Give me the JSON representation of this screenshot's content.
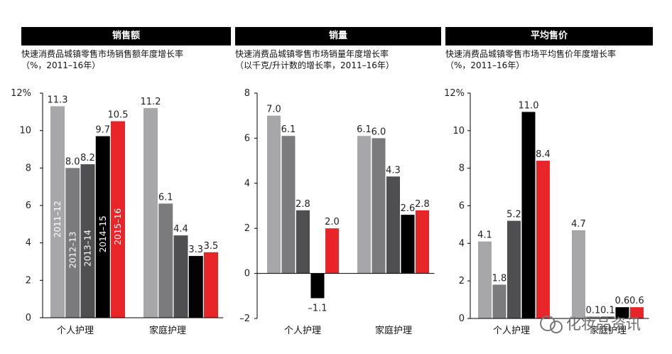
{
  "panels": [
    {
      "title": "销售额",
      "subtitle_lines": [
        "快速消费品城镇零售市场销售额年度增长率",
        "（%，2011–16年）"
      ]
    },
    {
      "title": "销量",
      "subtitle_lines": [
        "快速消费品城镇零售市场销量年度增长率",
        "（以千克/升计数的增长率，2011–16年）"
      ]
    },
    {
      "title": "平均售价",
      "subtitle_lines": [
        "快速消费品城镇零售市场平均售价年度增长率",
        "（%，2011–16年）"
      ]
    }
  ],
  "watermark": "化妆品资讯",
  "colors": {
    "s2011_12": "#a7a7a9",
    "s2012_13": "#7b7b7d",
    "s2013_14": "#4f4f51",
    "s2014_15": "#000000",
    "s2015_16": "#e8262a"
  },
  "chart_data": [
    {
      "type": "bar",
      "title": "销售额",
      "categories": [
        "个人护理",
        "家庭护理"
      ],
      "ylim": [
        0,
        12
      ],
      "yticks": [
        "0",
        "2",
        "4",
        "6",
        "8",
        "10",
        "12%"
      ],
      "series": [
        {
          "name": "2011–12",
          "values": [
            11.3,
            11.2
          ]
        },
        {
          "name": "2012–13",
          "values": [
            8.0,
            6.1
          ]
        },
        {
          "name": "2013–14",
          "values": [
            8.2,
            4.4
          ]
        },
        {
          "name": "2014–15",
          "values": [
            9.7,
            3.3
          ]
        },
        {
          "name": "2015–16",
          "values": [
            10.5,
            3.5
          ]
        }
      ],
      "value_labels": [
        [
          "11.3",
          "8.0",
          "8.2",
          "9.7",
          "10.5"
        ],
        [
          "11.2",
          "6.1",
          "4.4",
          "3.3",
          "3.5"
        ]
      ]
    },
    {
      "type": "bar",
      "title": "销量",
      "categories": [
        "个人护理",
        "家庭护理"
      ],
      "ylim": [
        -2,
        8
      ],
      "yticks": [
        "–2",
        "0",
        "2",
        "4",
        "6",
        "8"
      ],
      "series": [
        {
          "name": "2011–12",
          "values": [
            7.0,
            6.1
          ]
        },
        {
          "name": "2012–13",
          "values": [
            6.1,
            6.0
          ]
        },
        {
          "name": "2013–14",
          "values": [
            2.8,
            4.3
          ]
        },
        {
          "name": "2014–15",
          "values": [
            -1.1,
            2.6
          ]
        },
        {
          "name": "2015–16",
          "values": [
            2.0,
            2.8
          ]
        }
      ],
      "value_labels": [
        [
          "7.0",
          "6.1",
          "2.8",
          "–1.1",
          "2.0"
        ],
        [
          "6.1",
          "6.0",
          "4.3",
          "2.6",
          "2.8"
        ]
      ]
    },
    {
      "type": "bar",
      "title": "平均售价",
      "categories": [
        "个人护理",
        "家庭护理"
      ],
      "ylim": [
        0,
        12
      ],
      "yticks": [
        "0",
        "2",
        "4",
        "6",
        "8",
        "10",
        "12%"
      ],
      "series": [
        {
          "name": "2011–12",
          "values": [
            4.1,
            4.7
          ]
        },
        {
          "name": "2012–13",
          "values": [
            1.8,
            0.1
          ]
        },
        {
          "name": "2013–14",
          "values": [
            5.2,
            0.1
          ]
        },
        {
          "name": "2014–15",
          "values": [
            11.0,
            0.6
          ]
        },
        {
          "name": "2015–16",
          "values": [
            8.4,
            0.6
          ]
        }
      ],
      "value_labels": [
        [
          "4.1",
          "1.8",
          "5.2",
          "11.0",
          "8.4"
        ],
        [
          "4.7",
          "0.1",
          "0.1",
          "0.6",
          "0.6"
        ]
      ]
    }
  ]
}
